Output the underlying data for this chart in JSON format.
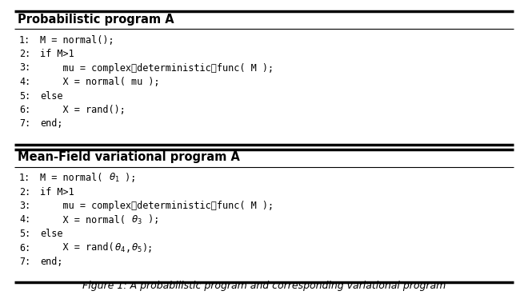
{
  "title1": "Probabilistic program A",
  "title2": "Mean-Field variational program A",
  "caption": "Figure 1: A probabilistic program and corresponding variational program",
  "prog_a": [
    [
      "1:",
      "M = normal();"
    ],
    [
      "2:",
      "if M>1"
    ],
    [
      "3:",
      "    mu = complex͟det͟erministic͟func( M );"
    ],
    [
      "4:",
      "    X = normal( mu );"
    ],
    [
      "5:",
      "else"
    ],
    [
      "6:",
      "    X = rand();"
    ],
    [
      "7:",
      "end;"
    ]
  ],
  "bg_color": "#ffffff",
  "border_color": "#000000",
  "text_color": "#000000",
  "mono_font_size": 8.5,
  "header_font_size": 10.5,
  "caption_font_size": 9.0
}
